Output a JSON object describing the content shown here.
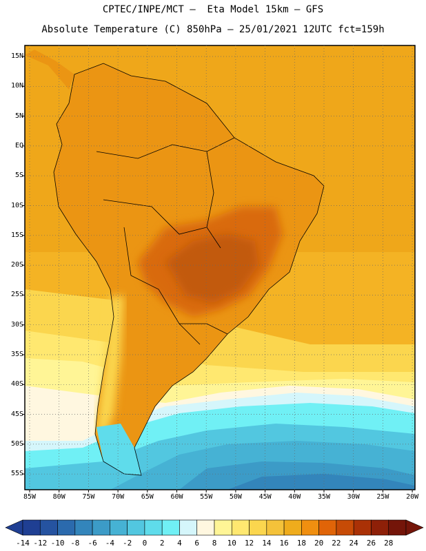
{
  "header": {
    "line1": "CPTEC/INPE/MCT –  Eta Model 15km – GFS",
    "line2": "Absolute Temperature (C) 850hPa – 25/01/2021 12UTC fct=159h"
  },
  "axes": {
    "lat_labels": [
      "15N",
      "10N",
      "5N",
      "EQ",
      "5S",
      "10S",
      "15S",
      "20S",
      "25S",
      "30S",
      "35S",
      "40S",
      "45S",
      "50S",
      "55S"
    ],
    "lon_labels": [
      "85W",
      "80W",
      "75W",
      "70W",
      "65W",
      "60W",
      "55W",
      "50W",
      "45W",
      "40W",
      "35W",
      "30W",
      "25W",
      "20W"
    ]
  },
  "colorbar": {
    "labels": [
      "-14",
      "-12",
      "-10",
      "-8",
      "-6",
      "-4",
      "-2",
      "0",
      "2",
      "4",
      "6",
      "8",
      "10",
      "12",
      "14",
      "16",
      "18",
      "20",
      "22",
      "24",
      "26",
      "28"
    ],
    "colors": [
      "#1f3f93",
      "#2553a0",
      "#2b6aad",
      "#3385bb",
      "#3c9bc7",
      "#46b2d4",
      "#52c7e0",
      "#5fdceb",
      "#70f0f5",
      "#d5f6fb",
      "#fff7e0",
      "#fff596",
      "#ffe870",
      "#fbd64e",
      "#f4c23a",
      "#efac1c",
      "#f08f10",
      "#e06408",
      "#c74b06",
      "#aa3106",
      "#8e2008",
      "#741509"
    ]
  },
  "map": {
    "field": "temperature at 850hPa",
    "water_color": "#efac1c",
    "land_color": "#eb9513",
    "hot_color": "#d96a0a",
    "cold_color": "#3c9bc7"
  }
}
